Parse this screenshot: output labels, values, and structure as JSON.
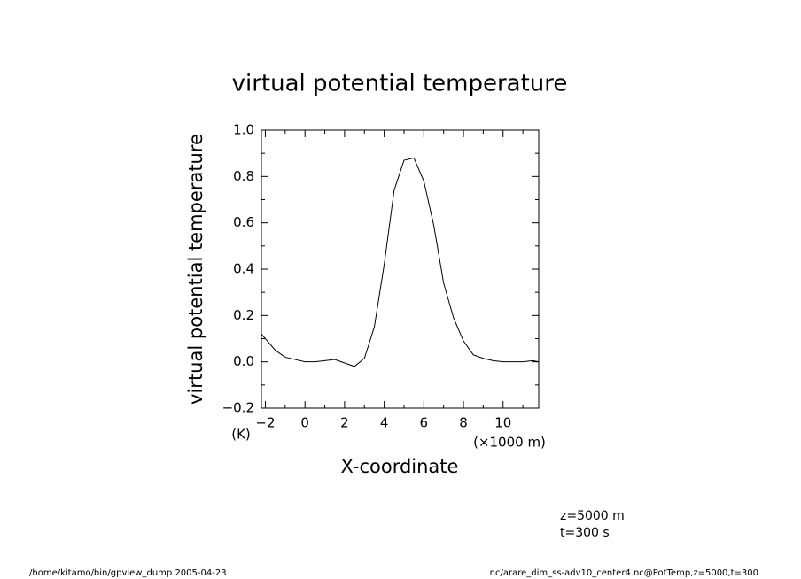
{
  "chart_data": {
    "type": "line",
    "title": "virtual potential temperature",
    "y_label": "virtual potential temperature",
    "y_unit": "(K)",
    "x_label": "X-coordinate",
    "x_unit": "(×1000 m)",
    "annotations": [
      "z=5000 m",
      "t=300 s"
    ],
    "footer_left": "/home/kitamo/bin/gpview_dump  2005-04-23",
    "footer_right": "nc/arare_dim_ss-adv10_center4.nc@PotTemp,z=5000,t=300",
    "x": [
      -2.2,
      -1.5,
      -1,
      -0.5,
      0,
      0.5,
      1,
      1.5,
      2,
      2.5,
      3,
      3.5,
      4,
      4.5,
      5,
      5.5,
      6,
      6.5,
      7,
      7.5,
      8,
      8.5,
      9,
      9.5,
      10,
      10.5,
      11,
      11.5,
      11.8
    ],
    "series": [
      {
        "name": "virtual potential temperature",
        "color": "#000000",
        "values": [
          0.12,
          0.05,
          0.02,
          0.01,
          0.0,
          0.0,
          0.005,
          0.01,
          -0.005,
          -0.02,
          0.015,
          0.15,
          0.42,
          0.74,
          0.87,
          0.88,
          0.78,
          0.59,
          0.34,
          0.19,
          0.09,
          0.03,
          0.015,
          0.005,
          0.0,
          0.0,
          0.0,
          0.005,
          0.0
        ]
      }
    ],
    "xlim": [
      -2.2,
      11.8
    ],
    "ylim": [
      -0.2,
      1.0
    ],
    "xticks": [
      {
        "value": -2,
        "label": "−2"
      },
      0,
      2,
      4,
      6,
      8,
      10
    ],
    "yticks": [
      {
        "value": -0.2,
        "label": "−0.2"
      },
      {
        "value": 0,
        "label": "0.0"
      },
      0.2,
      0.4,
      0.6,
      0.8,
      {
        "value": 1,
        "label": "1.0"
      }
    ],
    "xminorticks": [
      -1,
      1,
      3,
      5,
      7,
      9,
      11
    ],
    "yminorticks": [
      -0.1,
      0.1,
      0.3,
      0.5,
      0.7,
      0.9
    ],
    "grid": false
  }
}
